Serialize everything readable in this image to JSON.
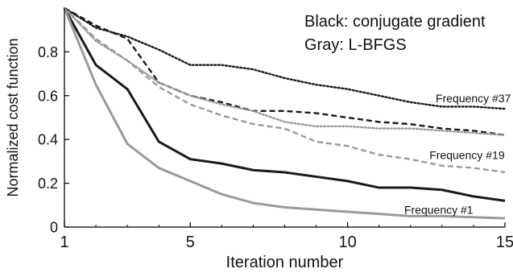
{
  "chart_data": {
    "type": "line",
    "xlabel": "Iteration number",
    "ylabel": "Normalized cost function",
    "xlim": [
      1,
      15
    ],
    "ylim": [
      0,
      1
    ],
    "xticks": [
      1,
      5,
      10,
      15
    ],
    "yticks": [
      0,
      0.2,
      0.4,
      0.6,
      0.8
    ],
    "grid": false,
    "legend_text": [
      "Black: conjugate gradient",
      "Gray: L-BFGS"
    ],
    "legend_position": "top-right",
    "x": [
      1,
      2,
      3,
      4,
      5,
      6,
      7,
      8,
      9,
      10,
      11,
      12,
      13,
      14,
      15
    ],
    "series": [
      {
        "method": "conjugate gradient",
        "frequency": "Frequency #1",
        "color": "#1a1a1a",
        "dash": "solid",
        "values": [
          1.0,
          0.74,
          0.63,
          0.39,
          0.31,
          0.29,
          0.26,
          0.25,
          0.23,
          0.21,
          0.18,
          0.18,
          0.17,
          0.14,
          0.12
        ]
      },
      {
        "method": "L-BFGS",
        "frequency": "Frequency #1",
        "color": "#9a9a9a",
        "dash": "solid",
        "values": [
          1.0,
          0.65,
          0.38,
          0.27,
          0.21,
          0.15,
          0.11,
          0.09,
          0.08,
          0.07,
          0.06,
          0.05,
          0.05,
          0.045,
          0.04
        ]
      },
      {
        "method": "conjugate gradient",
        "frequency": "Frequency #19",
        "color": "#1a1a1a",
        "dash": "dashed",
        "values": [
          1.0,
          0.92,
          0.86,
          0.66,
          0.6,
          0.57,
          0.53,
          0.53,
          0.52,
          0.5,
          0.48,
          0.47,
          0.45,
          0.44,
          0.42
        ]
      },
      {
        "method": "L-BFGS",
        "frequency": "Frequency #19",
        "color": "#9a9a9a",
        "dash": "dashed",
        "values": [
          1.0,
          0.86,
          0.76,
          0.64,
          0.56,
          0.51,
          0.47,
          0.45,
          0.39,
          0.37,
          0.33,
          0.31,
          0.28,
          0.27,
          0.25
        ]
      },
      {
        "method": "conjugate gradient",
        "frequency": "Frequency #37",
        "color": "#1a1a1a",
        "dash": "dotted",
        "values": [
          1.0,
          0.91,
          0.87,
          0.81,
          0.74,
          0.74,
          0.72,
          0.68,
          0.65,
          0.63,
          0.6,
          0.57,
          0.55,
          0.55,
          0.54
        ]
      },
      {
        "method": "L-BFGS",
        "frequency": "Frequency #37",
        "color": "#9a9a9a",
        "dash": "dotted",
        "values": [
          1.0,
          0.85,
          0.76,
          0.66,
          0.6,
          0.56,
          0.53,
          0.48,
          0.46,
          0.46,
          0.45,
          0.45,
          0.44,
          0.43,
          0.42
        ]
      }
    ],
    "annotations": [
      {
        "text": "Frequency #37",
        "x": 12.8,
        "y": 0.57
      },
      {
        "text": "Frequency #19",
        "x": 12.6,
        "y": 0.31
      },
      {
        "text": "Frequency #1",
        "x": 11.8,
        "y": 0.06
      }
    ]
  }
}
